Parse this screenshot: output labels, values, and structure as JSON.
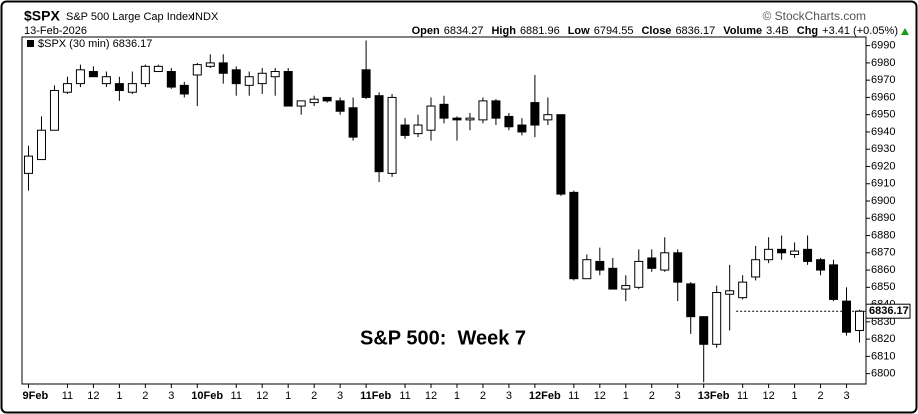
{
  "chart_data": {
    "type": "candlestick",
    "header": {
      "symbol": "$SPX",
      "name": "S&P 500 Large Cap Index",
      "exchange": "INDX",
      "credit": "© StockCharts.com",
      "date": "13-Feb-2026",
      "stats": [
        {
          "label": "Open",
          "value": 6834.27
        },
        {
          "label": "High",
          "value": 6881.96
        },
        {
          "label": "Low",
          "value": 6794.55
        },
        {
          "label": "Close",
          "value": 6836.17
        },
        {
          "label": "Volume",
          "value": "3.4B"
        },
        {
          "label": "Chg",
          "value": "+3.41 (+0.05%)"
        }
      ]
    },
    "annotation": "S&P 500:  Week 7",
    "categories": [
      "9Feb",
      null,
      null,
      "11",
      null,
      "12",
      null,
      "1",
      null,
      "2",
      null,
      "3",
      null,
      "10Feb",
      null,
      null,
      "11",
      null,
      "12",
      null,
      "1",
      null,
      "2",
      null,
      "3",
      null,
      "11Feb",
      null,
      null,
      "11",
      null,
      "12",
      null,
      "1",
      null,
      "2",
      null,
      "3",
      null,
      "12Feb",
      null,
      null,
      "11",
      null,
      "12",
      null,
      "1",
      null,
      "2",
      null,
      "3",
      null,
      "13Feb",
      null,
      null,
      "11",
      null,
      "12",
      null,
      "1",
      null,
      "2",
      null,
      "3",
      null
    ],
    "series": [
      {
        "name": "$SPX (30 min)",
        "up_color": "#ffffff",
        "down_color": "#000000",
        "open": [
          6916,
          6924,
          6941,
          6963,
          6968,
          6975,
          6968,
          6968,
          6963,
          6968,
          6975,
          6975,
          6967,
          6973,
          6978,
          6980,
          6976,
          6967,
          6968,
          6972,
          6975,
          6955,
          6957,
          6960,
          6958,
          6954,
          6976,
          6961,
          6916,
          6944,
          6939,
          6941,
          6956,
          6948,
          6947,
          6947,
          6958,
          6949,
          6944,
          6957,
          6947,
          6950,
          6905,
          6855,
          6865,
          6861,
          6849,
          6850,
          6867,
          6860,
          6870,
          6852,
          6833,
          6817,
          6846,
          6844,
          6856,
          6866,
          6872,
          6869,
          6872,
          6866,
          6863,
          6842,
          6825
        ],
        "high": [
          6932,
          6949,
          6967,
          6972,
          6979,
          6978,
          6975,
          6972,
          6975,
          6979,
          6979,
          6977,
          6969,
          6980,
          6985,
          6985,
          6978,
          6975,
          6977,
          6977,
          6977,
          6958,
          6961,
          6960,
          6960,
          6960,
          6993,
          6963,
          6962,
          6948,
          6950,
          6960,
          6961,
          6949,
          6951,
          6960,
          6959,
          6951,
          6948,
          6973,
          6960,
          6950,
          6906,
          6869,
          6873,
          6867,
          6857,
          6872,
          6872,
          6879,
          6872,
          6853,
          6833,
          6851,
          6863,
          6857,
          6874,
          6879,
          6880,
          6876,
          6880,
          6867,
          6866,
          6850,
          6837
        ],
        "low": [
          6906,
          6924,
          6941,
          6962,
          6966,
          6972,
          6966,
          6958,
          6962,
          6966,
          6975,
          6965,
          6960,
          6955,
          6977,
          6968,
          6961,
          6961,
          6962,
          6961,
          6955,
          6950,
          6955,
          6957,
          6950,
          6935,
          6959,
          6911,
          6914,
          6936,
          6937,
          6935,
          6945,
          6935,
          6941,
          6945,
          6944,
          6941,
          6938,
          6937,
          6944,
          6903,
          6854,
          6855,
          6857,
          6849,
          6842,
          6849,
          6859,
          6859,
          6842,
          6823,
          6795,
          6815,
          6825,
          6843,
          6854,
          6864,
          6866,
          6867,
          6863,
          6857,
          6842,
          6822,
          6818
        ],
        "close": [
          6926,
          6941,
          6964,
          6968,
          6976,
          6972,
          6972,
          6964,
          6968,
          6978,
          6978,
          6966,
          6962,
          6979,
          6980,
          6974,
          6968,
          6972,
          6974,
          6975,
          6955,
          6958,
          6959,
          6958,
          6952,
          6937,
          6960,
          6917,
          6960,
          6938,
          6944,
          6955,
          6948,
          6947,
          6948,
          6958,
          6948,
          6943,
          6940,
          6944,
          6950,
          6904,
          6855,
          6866,
          6860,
          6849,
          6851,
          6865,
          6861,
          6870,
          6853,
          6833,
          6817,
          6847,
          6848,
          6853,
          6866,
          6872,
          6870,
          6871,
          6865,
          6860,
          6843,
          6824,
          6836.17
        ]
      }
    ],
    "ylim": [
      6794,
      6995
    ],
    "yticks": [
      6800,
      6810,
      6820,
      6830,
      6840,
      6850,
      6860,
      6870,
      6880,
      6890,
      6900,
      6910,
      6920,
      6930,
      6940,
      6950,
      6960,
      6970,
      6980,
      6990
    ],
    "grid": false
  }
}
